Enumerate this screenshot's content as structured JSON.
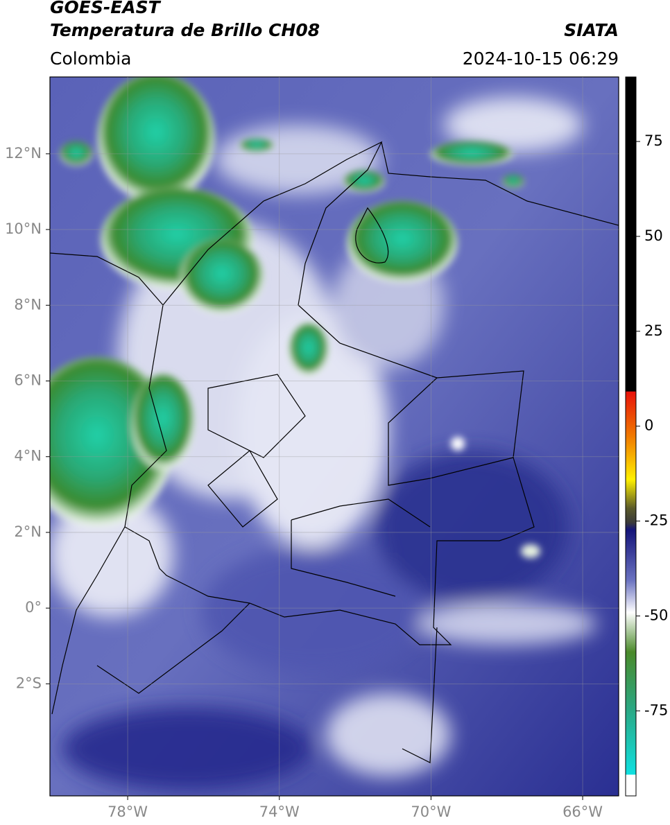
{
  "header": {
    "title": "GOES-EAST",
    "subtitle": "Temperatura de Brillo CH08",
    "source": "SIATA",
    "region": "Colombia",
    "datetime": "2024-10-15 06:29"
  },
  "map": {
    "xlim": [
      -80.05,
      -65.05
    ],
    "ylim": [
      -4.96,
      14.03
    ],
    "xticks": [
      {
        "value": -78,
        "label": "78°W"
      },
      {
        "value": -74,
        "label": "74°W"
      },
      {
        "value": -70,
        "label": "70°W"
      },
      {
        "value": -66,
        "label": "66°W"
      }
    ],
    "yticks": [
      {
        "value": 12,
        "label": "12°N"
      },
      {
        "value": 10,
        "label": "10°N"
      },
      {
        "value": 8,
        "label": "8°N"
      },
      {
        "value": 6,
        "label": "6°N"
      },
      {
        "value": 4,
        "label": "4°N"
      },
      {
        "value": 2,
        "label": "2°N"
      },
      {
        "value": 0,
        "label": "0°"
      },
      {
        "value": -2,
        "label": "2°S"
      }
    ],
    "grid": true
  },
  "colorbar": {
    "clim": [
      -97.4,
      92
    ],
    "ticks": [
      75,
      50,
      25,
      0,
      -25,
      -50,
      -75
    ]
  }
}
